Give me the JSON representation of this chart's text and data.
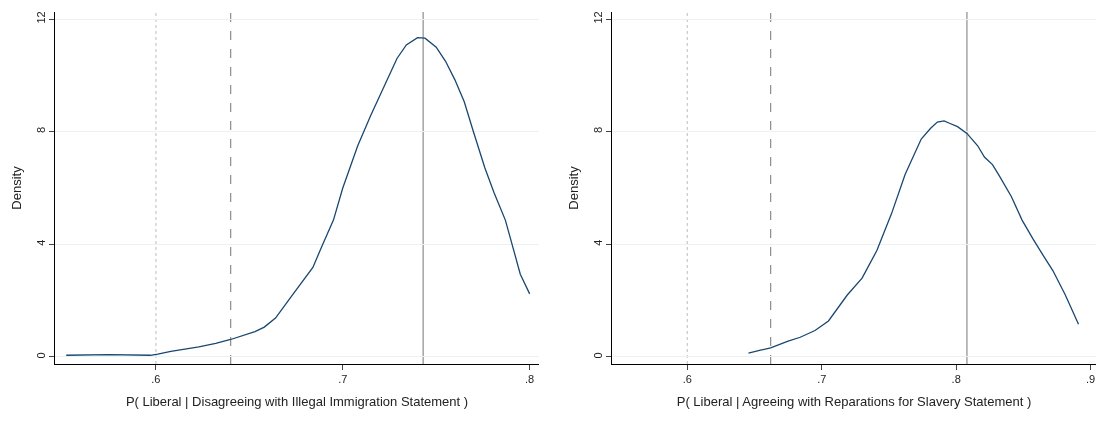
{
  "chart_data": [
    {
      "type": "line",
      "xlabel": "P( Liberal | Disagreeing with Illegal Immigration Statement )",
      "ylabel": "Density",
      "grid": "y",
      "line_style": "solid",
      "marker": "none",
      "x": [
        0.552,
        0.575,
        0.597,
        0.601,
        0.608,
        0.623,
        0.632,
        0.64,
        0.653,
        0.658,
        0.664,
        0.673,
        0.684,
        0.689,
        0.695,
        0.7,
        0.708,
        0.715,
        0.72,
        0.729,
        0.734,
        0.74,
        0.744,
        0.75,
        0.755,
        0.76,
        0.765,
        0.77,
        0.776,
        0.781,
        0.787,
        0.795,
        0.8
      ],
      "series": [
        {
          "color": "#1a476f",
          "values": [
            0.06,
            0.08,
            0.06,
            0.1,
            0.2,
            0.36,
            0.48,
            0.62,
            0.9,
            1.06,
            1.38,
            2.2,
            3.18,
            3.96,
            4.86,
            6.0,
            7.5,
            8.58,
            9.3,
            10.6,
            11.08,
            11.34,
            11.32,
            11.0,
            10.5,
            9.84,
            9.06,
            7.98,
            6.72,
            5.82,
            4.86,
            2.94,
            2.24
          ]
        }
      ],
      "xlim": [
        0.546,
        0.805
      ],
      "xticks": [
        {
          "value": 0.6,
          "label": ".6"
        },
        {
          "value": 0.7,
          "label": ".7"
        },
        {
          "value": 0.8,
          "label": ".8"
        }
      ],
      "ylim": [
        -0.25,
        12.25
      ],
      "yticks": [
        0,
        4,
        8,
        12
      ],
      "ref_lines": [
        {
          "axis": "x",
          "value": 0.6,
          "color": "#c8c8c8",
          "line_style": "dotted"
        },
        {
          "axis": "x",
          "value": 0.64,
          "color": "#8c8c8c",
          "line_style": "dashed"
        },
        {
          "axis": "x",
          "value": 0.743,
          "color": "#8c8c8c",
          "line_style": "solid"
        }
      ]
    },
    {
      "type": "line",
      "xlabel": "P( Liberal | Agreeing with Reparations for Slavery Statement )",
      "ylabel": "Density",
      "grid": "y",
      "line_style": "solid",
      "marker": "none",
      "x": [
        0.6455,
        0.6545,
        0.662,
        0.675,
        0.684,
        0.695,
        0.705,
        0.719,
        0.73,
        0.741,
        0.752,
        0.762,
        0.774,
        0.781,
        0.786,
        0.791,
        0.795,
        0.801,
        0.808,
        0.816,
        0.821,
        0.827,
        0.832,
        0.841,
        0.849,
        0.857,
        0.864,
        0.872,
        0.881,
        0.891
      ],
      "series": [
        {
          "color": "#1a476f",
          "values": [
            0.14,
            0.24,
            0.32,
            0.56,
            0.7,
            0.94,
            1.28,
            2.2,
            2.8,
            3.78,
            5.1,
            6.48,
            7.74,
            8.12,
            8.34,
            8.38,
            8.3,
            8.18,
            7.94,
            7.5,
            7.1,
            6.83,
            6.44,
            5.7,
            4.86,
            4.2,
            3.66,
            3.06,
            2.22,
            1.16
          ]
        }
      ],
      "xlim": [
        0.544,
        0.904
      ],
      "xticks": [
        {
          "value": 0.6,
          "label": ".6"
        },
        {
          "value": 0.7,
          "label": ".7"
        },
        {
          "value": 0.8,
          "label": ".8"
        },
        {
          "value": 0.9,
          "label": ".9"
        }
      ],
      "ylim": [
        -0.25,
        12.25
      ],
      "yticks": [
        0,
        4,
        8,
        12
      ],
      "ref_lines": [
        {
          "axis": "x",
          "value": 0.6,
          "color": "#c8c8c8",
          "line_style": "dotted"
        },
        {
          "axis": "x",
          "value": 0.662,
          "color": "#8c8c8c",
          "line_style": "dashed"
        },
        {
          "axis": "x",
          "value": 0.808,
          "color": "#8c8c8c",
          "line_style": "solid"
        }
      ]
    }
  ]
}
